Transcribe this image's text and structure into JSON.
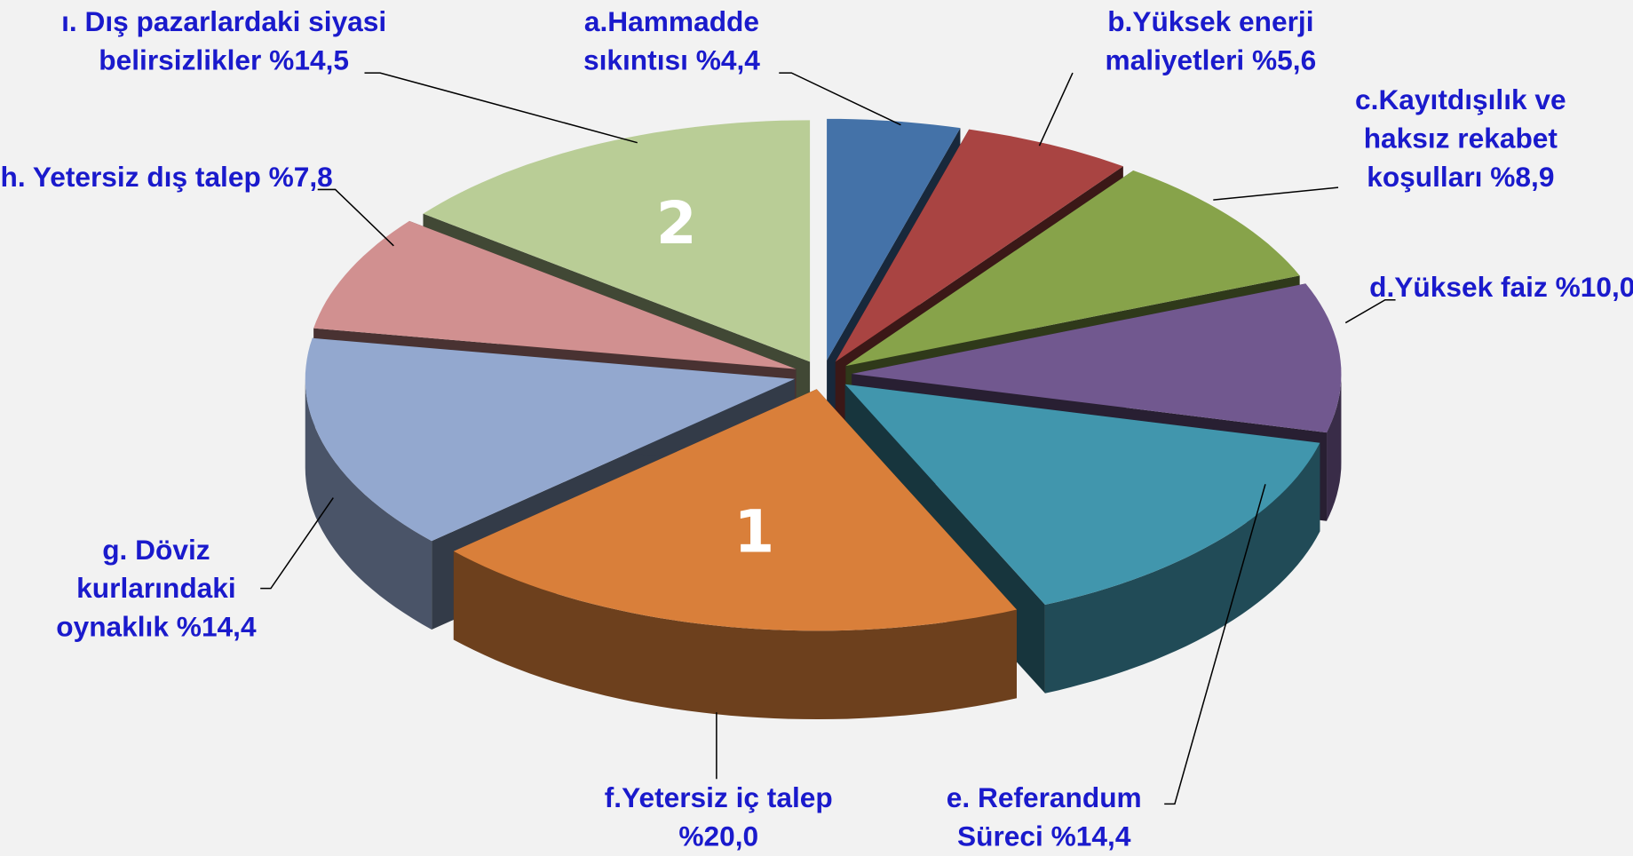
{
  "chart_data": {
    "type": "pie3d",
    "categories": [
      "a.Hammadde sıkıntısı",
      "b.Yüksek enerji maliyetleri",
      "c.Kayıtdışılık ve haksız rekabet koşulları",
      "d.Yüksek faiz",
      "e. Referandum Süreci",
      "f.Yetersiz iç talep",
      "g. Döviz kurlarındaki oynaklık",
      "h. Yetersiz dış talep",
      "ı. Dış pazarlardaki siyasi belirsizlikler"
    ],
    "values": [
      4.4,
      5.6,
      8.9,
      10.0,
      14.4,
      20.0,
      14.4,
      7.8,
      14.5
    ],
    "value_labels": [
      "%4,4",
      "%5,6",
      "%8,9",
      "%10,0",
      "%14,4",
      "%20,0",
      "%14,4",
      "%7,8",
      "%14,5"
    ],
    "colors": [
      "#4472a8",
      "#a94442",
      "#87a34a",
      "#71588f",
      "#4196ad",
      "#d97f3a",
      "#93a8cf",
      "#d19090",
      "#b9cd96"
    ],
    "annotations": [
      {
        "text": "1",
        "category": "f.Yetersiz iç talep"
      },
      {
        "text": "2",
        "category": "ı. Dış pazarlardaki siyasi belirsizlikler"
      }
    ]
  }
}
